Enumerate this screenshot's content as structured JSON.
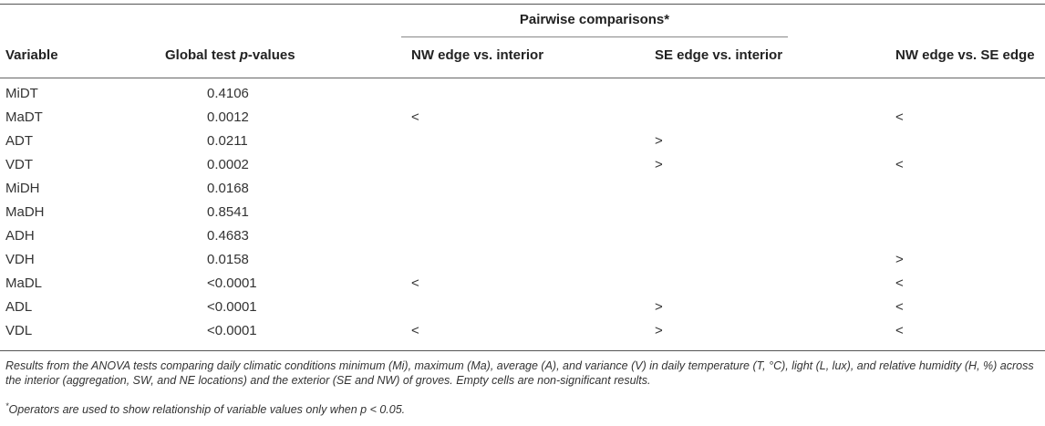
{
  "table": {
    "group_header": "Pairwise comparisons*",
    "columns": {
      "variable": "Variable",
      "global_prefix": "Global test ",
      "global_italic": "p",
      "global_suffix": "-values",
      "nw_interior": "NW edge vs. interior",
      "se_interior": "SE edge vs. interior",
      "nw_se": "NW edge vs. SE edge"
    },
    "rows": [
      {
        "variable": "MiDT",
        "pvalue": "0.4106",
        "nw_interior": "",
        "se_interior": "",
        "nw_se": ""
      },
      {
        "variable": "MaDT",
        "pvalue": "0.0012",
        "nw_interior": "<",
        "se_interior": "",
        "nw_se": "<"
      },
      {
        "variable": "ADT",
        "pvalue": "0.0211",
        "nw_interior": "",
        "se_interior": ">",
        "nw_se": ""
      },
      {
        "variable": "VDT",
        "pvalue": "0.0002",
        "nw_interior": "",
        "se_interior": ">",
        "nw_se": "<"
      },
      {
        "variable": "MiDH",
        "pvalue": "0.0168",
        "nw_interior": "",
        "se_interior": "",
        "nw_se": ""
      },
      {
        "variable": "MaDH",
        "pvalue": "0.8541",
        "nw_interior": "",
        "se_interior": "",
        "nw_se": ""
      },
      {
        "variable": "ADH",
        "pvalue": "0.4683",
        "nw_interior": "",
        "se_interior": "",
        "nw_se": ""
      },
      {
        "variable": "VDH",
        "pvalue": "0.0158",
        "nw_interior": "",
        "se_interior": "",
        "nw_se": ">"
      },
      {
        "variable": "MaDL",
        "pvalue": "<0.0001",
        "nw_interior": "<",
        "se_interior": "",
        "nw_se": "<"
      },
      {
        "variable": "ADL",
        "pvalue": "<0.0001",
        "nw_interior": "",
        "se_interior": ">",
        "nw_se": "<"
      },
      {
        "variable": "VDL",
        "pvalue": "<0.0001",
        "nw_interior": "<",
        "se_interior": ">",
        "nw_se": "<"
      }
    ]
  },
  "notes": {
    "caption": "Results from the ANOVA tests comparing daily climatic conditions minimum (Mi), maximum (Ma), average (A), and variance (V) in daily temperature (T, °C), light (L, lux), and relative humidity (H, %) across the interior (aggregation, SW, and NE locations) and the exterior (SE and NW) of groves. Empty cells are non-significant results.",
    "footnote_marker": "*",
    "footnote": "Operators are used to show relationship of variable values only when p < 0.05."
  }
}
